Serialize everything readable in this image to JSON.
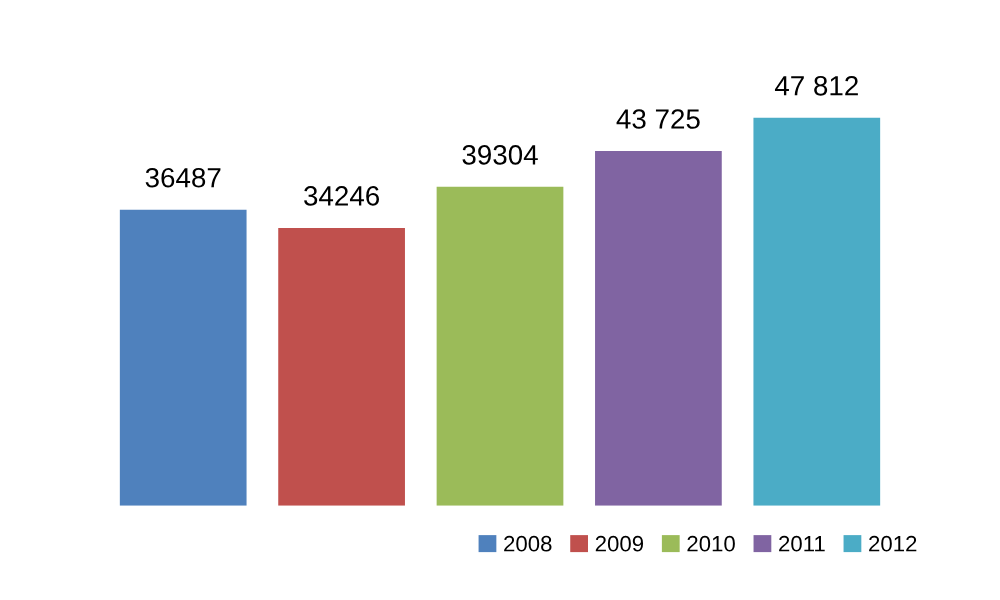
{
  "chart_data": {
    "type": "bar",
    "categories": [
      null
    ],
    "series": [
      {
        "name": "2008",
        "color": "#4f81bd",
        "values": [
          36487
        ],
        "value_labels": [
          "36487"
        ]
      },
      {
        "name": "2009",
        "color": "#c0504d",
        "values": [
          34246
        ],
        "value_labels": [
          "34246"
        ]
      },
      {
        "name": "2010",
        "color": "#9bbb59",
        "values": [
          39304
        ],
        "value_labels": [
          "39304"
        ]
      },
      {
        "name": "2011",
        "color": "#8064a2",
        "values": [
          43725
        ],
        "value_labels": [
          "43 725"
        ]
      },
      {
        "name": "2012",
        "color": "#4bacc6",
        "values": [
          47812
        ],
        "value_labels": [
          "47 812"
        ]
      }
    ],
    "legend": "bottom",
    "grid": false
  }
}
